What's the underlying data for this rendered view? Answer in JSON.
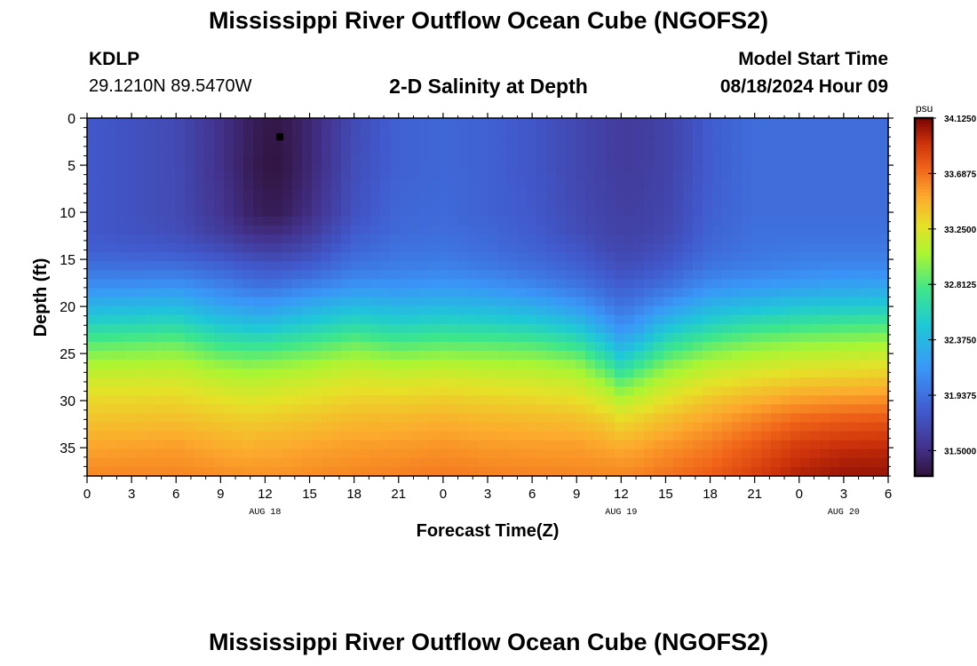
{
  "page": {
    "title": "Mississippi River Outflow Ocean Cube (NGOFS2)",
    "title_repeat": "Mississippi River Outflow Ocean Cube (NGOFS2)",
    "station": "KDLP",
    "coords": "29.1210N  89.5470W",
    "plot_title": "2-D Salinity at Depth",
    "model_start_label": "Model Start Time",
    "model_start_value": "08/18/2024 Hour 09"
  },
  "chart_data": {
    "type": "heatmap",
    "title": "2-D Salinity at Depth",
    "xlabel": "Forecast Time(Z)",
    "ylabel": "Depth (ft)",
    "x_ticks": [
      "0",
      "3",
      "6",
      "9",
      "12",
      "15",
      "18",
      "21",
      "0",
      "3",
      "6",
      "9",
      "12",
      "15",
      "18",
      "21",
      "0",
      "3",
      "6"
    ],
    "x_range_hours": [
      0,
      54
    ],
    "date_labels": [
      {
        "hour": 12,
        "label": "AUG 18"
      },
      {
        "hour": 36,
        "label": "AUG 19"
      },
      {
        "hour": 51,
        "label": "AUG 20"
      }
    ],
    "y_ticks": [
      0,
      5,
      10,
      15,
      20,
      25,
      30,
      35
    ],
    "ylim": [
      38,
      0
    ],
    "colorbar": {
      "unit": "psu",
      "min": 31.3,
      "max": 34.125,
      "tick_labels": [
        "34.1250",
        "33.6875",
        "33.2500",
        "32.8125",
        "32.3750",
        "31.9375",
        "31.5000"
      ],
      "tick_values": [
        34.125,
        33.6875,
        33.25,
        32.8125,
        32.375,
        31.9375,
        31.5
      ]
    },
    "x_hours": [
      0,
      6,
      9,
      11,
      12,
      13,
      15,
      18,
      21,
      24,
      27,
      30,
      33,
      35,
      36,
      37,
      39,
      42,
      45,
      48,
      51,
      54
    ],
    "depths_ft": [
      0,
      5,
      10,
      12,
      14,
      16,
      18,
      20,
      22,
      24,
      26,
      28,
      30,
      32,
      35,
      38
    ],
    "salinity_psu": [
      [
        31.8,
        31.8,
        31.8,
        31.8,
        31.84,
        31.95,
        32.12,
        32.35,
        32.6,
        32.85,
        33.05,
        33.2,
        33.32,
        33.4,
        33.52,
        33.62
      ],
      [
        31.7,
        31.7,
        31.7,
        31.72,
        31.8,
        31.95,
        32.15,
        32.4,
        32.65,
        32.9,
        33.08,
        33.22,
        33.33,
        33.42,
        33.55,
        33.62
      ],
      [
        31.52,
        31.52,
        31.55,
        31.6,
        31.72,
        31.88,
        32.05,
        32.25,
        32.5,
        32.75,
        32.98,
        33.15,
        33.28,
        33.38,
        33.5,
        33.6
      ],
      [
        31.4,
        31.38,
        31.42,
        31.5,
        31.65,
        31.82,
        31.98,
        32.2,
        32.45,
        32.72,
        32.95,
        33.12,
        33.25,
        33.36,
        33.48,
        33.58
      ],
      [
        31.35,
        31.33,
        31.38,
        31.48,
        31.62,
        31.8,
        31.96,
        32.18,
        32.44,
        32.72,
        32.96,
        33.13,
        33.26,
        33.37,
        33.5,
        33.58
      ],
      [
        31.34,
        31.32,
        31.38,
        31.48,
        31.63,
        31.8,
        31.98,
        32.22,
        32.48,
        32.75,
        32.98,
        33.15,
        33.27,
        33.38,
        33.5,
        33.58
      ],
      [
        31.45,
        31.45,
        31.5,
        31.58,
        31.7,
        31.85,
        32.05,
        32.3,
        32.55,
        32.8,
        33.02,
        33.18,
        33.3,
        33.4,
        33.52,
        33.6
      ],
      [
        31.7,
        31.72,
        31.75,
        31.8,
        31.88,
        31.98,
        32.15,
        32.4,
        32.65,
        32.9,
        33.1,
        33.24,
        33.35,
        33.44,
        33.55,
        33.62
      ],
      [
        31.85,
        31.85,
        31.88,
        31.9,
        31.95,
        32.02,
        32.15,
        32.35,
        32.58,
        32.82,
        33.05,
        33.22,
        33.35,
        33.45,
        33.56,
        33.64
      ],
      [
        31.88,
        31.88,
        31.9,
        31.92,
        31.96,
        32.04,
        32.18,
        32.38,
        32.62,
        32.86,
        33.08,
        33.25,
        33.37,
        33.47,
        33.58,
        33.66
      ],
      [
        31.85,
        31.85,
        31.85,
        31.88,
        31.92,
        32.0,
        32.15,
        32.36,
        32.6,
        32.85,
        33.06,
        33.22,
        33.35,
        33.45,
        33.56,
        33.64
      ],
      [
        31.78,
        31.78,
        31.8,
        31.82,
        31.86,
        31.94,
        32.08,
        32.3,
        32.56,
        32.82,
        33.04,
        33.2,
        33.33,
        33.44,
        33.55,
        33.63
      ],
      [
        31.68,
        31.68,
        31.7,
        31.72,
        31.78,
        31.86,
        31.98,
        32.18,
        32.45,
        32.72,
        32.98,
        33.16,
        33.3,
        33.42,
        33.55,
        33.62
      ],
      [
        31.62,
        31.62,
        31.64,
        31.66,
        31.7,
        31.78,
        31.88,
        32.02,
        32.22,
        32.48,
        32.75,
        33.0,
        33.2,
        33.36,
        33.52,
        33.62
      ],
      [
        31.6,
        31.6,
        31.62,
        31.64,
        31.68,
        31.74,
        31.84,
        31.96,
        32.1,
        32.32,
        32.58,
        32.85,
        33.1,
        33.3,
        33.5,
        33.62
      ],
      [
        31.6,
        31.6,
        31.62,
        31.64,
        31.68,
        31.75,
        31.86,
        32.0,
        32.18,
        32.42,
        32.7,
        32.95,
        33.16,
        33.34,
        33.52,
        33.63
      ],
      [
        31.64,
        31.64,
        31.66,
        31.68,
        31.74,
        31.82,
        31.95,
        32.15,
        32.42,
        32.68,
        32.92,
        33.12,
        33.28,
        33.42,
        33.58,
        33.68
      ],
      [
        31.82,
        31.82,
        31.84,
        31.86,
        31.9,
        31.98,
        32.12,
        32.35,
        32.6,
        32.86,
        33.08,
        33.25,
        33.4,
        33.52,
        33.66,
        33.76
      ],
      [
        31.92,
        31.92,
        31.92,
        31.94,
        31.96,
        32.02,
        32.18,
        32.42,
        32.7,
        32.95,
        33.15,
        33.32,
        33.48,
        33.62,
        33.78,
        33.88
      ],
      [
        31.92,
        31.92,
        31.92,
        31.94,
        31.98,
        32.06,
        32.22,
        32.48,
        32.75,
        33.0,
        33.2,
        33.38,
        33.55,
        33.72,
        33.9,
        34.0
      ],
      [
        31.92,
        31.92,
        31.92,
        31.94,
        31.98,
        32.08,
        32.25,
        32.5,
        32.78,
        33.02,
        33.22,
        33.4,
        33.58,
        33.76,
        33.95,
        34.05
      ],
      [
        31.92,
        31.92,
        31.92,
        31.94,
        31.98,
        32.08,
        32.26,
        32.52,
        32.8,
        33.05,
        33.25,
        33.42,
        33.6,
        33.78,
        33.96,
        34.06
      ]
    ],
    "marker": {
      "hour": 13,
      "depth_ft": 2
    }
  }
}
